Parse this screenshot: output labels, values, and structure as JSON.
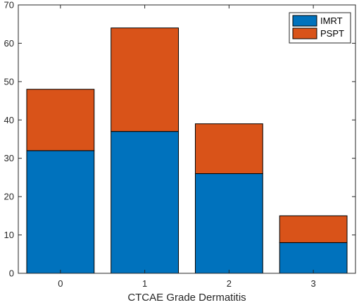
{
  "chart_data": {
    "type": "bar",
    "stacked": true,
    "categories": [
      "0",
      "1",
      "2",
      "3"
    ],
    "series": [
      {
        "name": "IMRT",
        "values": [
          32,
          37,
          26,
          8
        ],
        "color": "#0072BD"
      },
      {
        "name": "PSPT",
        "values": [
          16,
          27,
          13,
          7
        ],
        "color": "#D95319"
      }
    ],
    "title": "",
    "xlabel": "CTCAE Grade Dermatitis",
    "ylabel": "",
    "ylim": [
      0,
      70
    ],
    "yticks": [
      0,
      10,
      20,
      30,
      40,
      50,
      60,
      70
    ],
    "grid": false,
    "legend_position": "top-right"
  }
}
